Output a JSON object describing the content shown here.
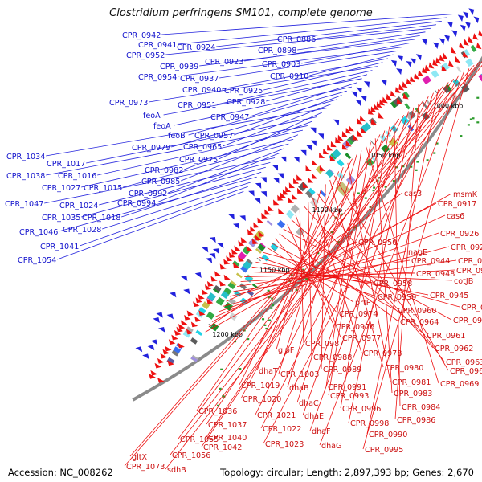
{
  "title": "Clostridium perfringens SM101, complete genome",
  "footer": {
    "accession": "Accession: NC_008262",
    "stats": "Topology: circular; Length: 2,897,393 bp; Genes: 2,670"
  },
  "colors": {
    "forward_strand": "#ee1111",
    "reverse_strand": "#2222dd",
    "backbone": "#8a8a8a",
    "blue_label": "#1111cc",
    "red_label": "#cc1111"
  },
  "scale_marks": [
    {
      "label": "1000 kbp",
      "kbp": 1000
    },
    {
      "label": "1050 kbp",
      "kbp": 1050
    },
    {
      "label": "1100 kbp",
      "kbp": 1100
    },
    {
      "label": "1150 kbp",
      "kbp": 1150
    },
    {
      "label": "1200 kbp",
      "kbp": 1200
    }
  ],
  "blue_gene_labels": [
    "CPR_0942",
    "CPR_0941",
    "CPR_0924",
    "CPR_0886",
    "CPR_0952",
    "CPR_0898",
    "CPR_0923",
    "CPR_0939",
    "CPR_0903",
    "CPR_0954",
    "CPR_0937",
    "CPR_0910",
    "CPR_0940",
    "CPR_0925",
    "CPR_0973",
    "CPR_0951",
    "CPR_0928",
    "feoA",
    "CPR_0947",
    "feoA",
    "feoB",
    "CPR_0957",
    "CPR_0979",
    "CPR_0965",
    "CPR_1034",
    "CPR_0975",
    "CPR_1017",
    "CPR_0982",
    "CPR_1038",
    "CPR_1016",
    "CPR_0985",
    "CPR_1027",
    "CPR_1015",
    "CPR_0992",
    "CPR_0994",
    "CPR_1047",
    "CPR_1024",
    "CPR_1035",
    "CPR_1018",
    "CPR_1046",
    "CPR_1028",
    "CPR_1041",
    "CPR_1054"
  ],
  "red_gene_labels": [
    "msmK",
    "cas3",
    "CPR_0917",
    "cas6",
    "CPR_0926",
    "CPR_0927",
    "CPR_0950",
    "nagE",
    "CPR_0929",
    "CPR_0944",
    "CPR_0932",
    "CPR_0948",
    "cotJB",
    "CPR_0958",
    "CPR_0945",
    "CPR_0959",
    "CPR_0946",
    "prtP",
    "CPR_0960",
    "CPR_0974",
    "CPR_0964",
    "CPR_0949",
    "CPR_0976",
    "CPR_0961",
    "CPR_0977",
    "CPR_0987",
    "CPR_0962",
    "CPR_0988",
    "CPR_0978",
    "CPR_0963",
    "glpF",
    "CPR_0989",
    "CPR_0980",
    "CPR_0966",
    "dhaT",
    "CPR_1003",
    "CPR_0981",
    "CPR_1019",
    "dhaB",
    "CPR_0991",
    "CPR_0969",
    "CPR_0993",
    "CPR_0983",
    "CPR_1020",
    "dhaC",
    "CPR_0996",
    "CPR_0984",
    "CPR_1036",
    "CPR_1021",
    "dhaE",
    "CPR_0998",
    "CPR_0986",
    "CPR_1037",
    "CPR_1022",
    "dhaF",
    "CPR_0990",
    "CPR_1055",
    "CPR_1040",
    "CPR_1042",
    "CPR_1023",
    "dhaG",
    "CPR_0995",
    "gltX",
    "CPR_1056",
    "CPR_1073",
    "sdhB"
  ]
}
